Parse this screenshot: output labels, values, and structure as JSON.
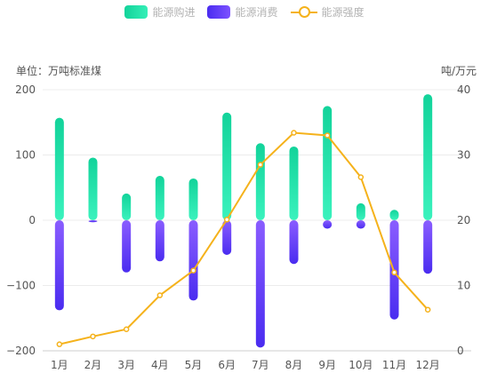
{
  "legend": {
    "purchase": "能源购进",
    "consumption": "能源消费",
    "intensity": "能源强度"
  },
  "units": {
    "left": "单位：万吨标准煤",
    "right": "吨/万元"
  },
  "colors": {
    "purchase_top": "#12d39a",
    "purchase_bottom": "#3af2bd",
    "consumption_top": "#8a5dff",
    "consumption_bottom": "#4a2cf0",
    "intensity": "#f5b21b",
    "axis_text": "#555555",
    "grid": "#ececec"
  },
  "chart_data": {
    "type": "bar",
    "categories": [
      "1月",
      "2月",
      "3月",
      "4月",
      "5月",
      "6月",
      "7月",
      "8月",
      "9月",
      "10月",
      "11月",
      "12月"
    ],
    "series": [
      {
        "name": "能源购进",
        "type": "bar",
        "axis": "left",
        "values": [
          157,
          96,
          41,
          68,
          64,
          165,
          118,
          113,
          175,
          26,
          16,
          193
        ]
      },
      {
        "name": "能源消费",
        "type": "bar",
        "axis": "left",
        "values": [
          -138,
          -3,
          -80,
          -63,
          -123,
          -53,
          -195,
          -67,
          -13,
          -13,
          -152,
          -82
        ]
      },
      {
        "name": "能源强度",
        "type": "line",
        "axis": "right",
        "values": [
          1,
          2.2,
          3.3,
          8.5,
          12.3,
          20.1,
          28.5,
          33.4,
          33,
          26.6,
          12,
          6.3
        ]
      }
    ],
    "y_left": {
      "min": -200,
      "max": 200,
      "ticks": [
        -200,
        -100,
        0,
        100,
        200
      ]
    },
    "y_right": {
      "min": 0,
      "max": 40,
      "ticks": [
        0,
        10,
        20,
        30,
        40
      ]
    },
    "grid": true,
    "legend_position": "top-center"
  }
}
